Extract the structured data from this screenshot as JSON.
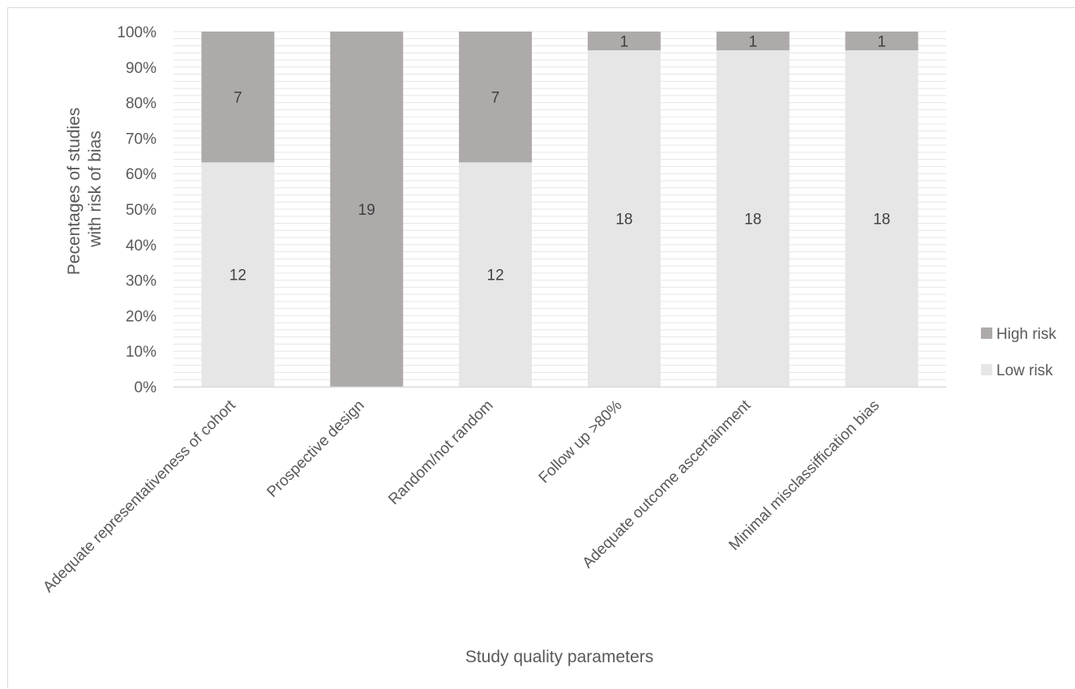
{
  "chart_data": {
    "type": "bar",
    "stacked": true,
    "percent_stacked": true,
    "categories": [
      "Adequate representativeness of cohort",
      "Prospective design",
      "Random/not random",
      "Follow up >80%",
      "Adequate outcome ascertainment",
      "Minimal misclassiffication bias"
    ],
    "series": [
      {
        "name": "Low risk",
        "values": [
          12,
          0,
          12,
          18,
          18,
          18
        ],
        "color": "#e7e6e6"
      },
      {
        "name": "High risk",
        "values": [
          7,
          19,
          7,
          1,
          1,
          1
        ],
        "color": "#aeaaaa"
      }
    ],
    "data_labels": {
      "Low risk": [
        "12",
        "",
        "12",
        "18",
        "18",
        "18"
      ],
      "High risk": [
        "7",
        "19",
        "7",
        "1",
        "1",
        "1"
      ]
    },
    "yticks": [
      "0%",
      "10%",
      "20%",
      "30%",
      "40%",
      "50%",
      "60%",
      "70%",
      "80%",
      "90%",
      "100%"
    ],
    "ylim": [
      0,
      100
    ],
    "xlabel": "Study quality parameters",
    "ylabel_lines": [
      "Pecentages of studies",
      "with risk of bias"
    ],
    "legend": {
      "position": "right",
      "entries": [
        "High risk",
        "Low risk"
      ]
    },
    "grid": true,
    "colors": {
      "gridline": "#e6e6e6",
      "axis": "#d9d9d9",
      "text": "#595959",
      "label": "#404040"
    }
  }
}
